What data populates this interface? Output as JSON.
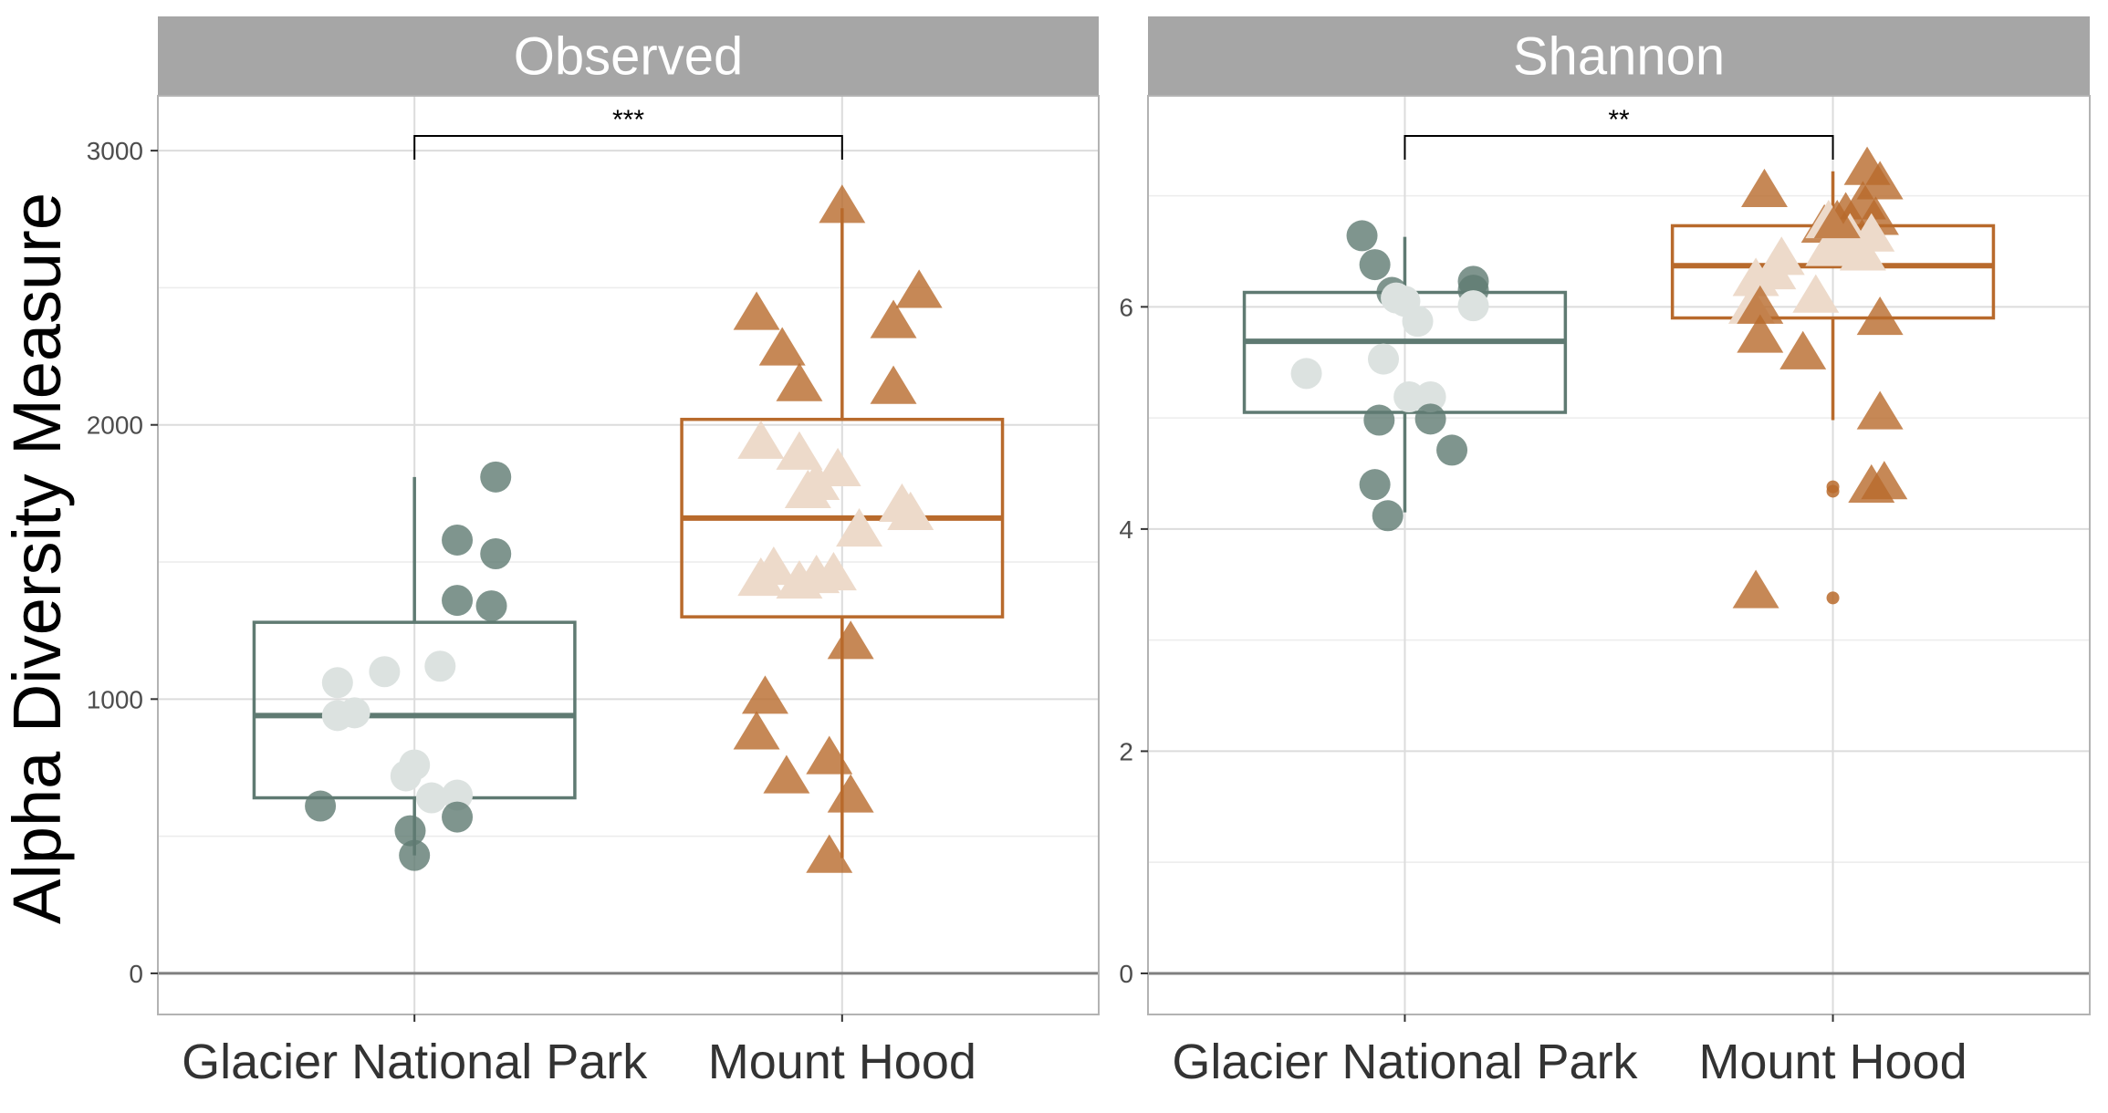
{
  "figure": {
    "ylabel": "Alpha Diversity Measure",
    "colors": {
      "glacier": "#5f7a72",
      "hood": "#b86a2c",
      "strip": "#a6a6a6",
      "grid": "#dcdcdc",
      "zero_line": "#7f7f7f"
    }
  },
  "chart_data": [
    {
      "type": "box",
      "panel": "Observed",
      "categories": [
        "Glacier National Park",
        "Mount Hood"
      ],
      "ylim": [
        -150,
        3200
      ],
      "yticks": [
        "0",
        "1000",
        "2000",
        "3000"
      ],
      "grid": true,
      "significance": "***",
      "boxes": [
        {
          "category": "Glacier National Park",
          "q1": 640,
          "median": 940,
          "q3": 1280,
          "whisker_low": 430,
          "whisker_high": 1810
        },
        {
          "category": "Mount Hood",
          "q1": 1300,
          "median": 1660,
          "q3": 2020,
          "whisker_low": 420,
          "whisker_high": 2790
        }
      ],
      "series": [
        {
          "name": "Glacier National Park",
          "marker": "circle",
          "points": [
            [
              1.19,
              1810,
              1
            ],
            [
              1.1,
              1580,
              1
            ],
            [
              1.19,
              1530,
              1
            ],
            [
              1.1,
              1360,
              1
            ],
            [
              1.18,
              1340,
              1
            ],
            [
              0.82,
              1060,
              0
            ],
            [
              0.93,
              1100,
              0
            ],
            [
              1.06,
              1120,
              0
            ],
            [
              0.82,
              940,
              0
            ],
            [
              0.86,
              950,
              0
            ],
            [
              1.0,
              760,
              0
            ],
            [
              0.98,
              720,
              0
            ],
            [
              1.1,
              650,
              0
            ],
            [
              1.04,
              640,
              0
            ],
            [
              0.78,
              610,
              1
            ],
            [
              1.1,
              570,
              1
            ],
            [
              0.99,
              520,
              1
            ],
            [
              1.0,
              430,
              1
            ]
          ]
        },
        {
          "name": "Mount Hood",
          "marker": "triangle",
          "points": [
            [
              2.0,
              2790,
              1
            ],
            [
              2.18,
              2480,
              1
            ],
            [
              1.8,
              2400,
              1
            ],
            [
              2.12,
              2370,
              1
            ],
            [
              1.86,
              2270,
              1
            ],
            [
              1.9,
              2140,
              1
            ],
            [
              2.12,
              2130,
              1
            ],
            [
              1.81,
              1930,
              0
            ],
            [
              1.9,
              1890,
              0
            ],
            [
              1.99,
              1830,
              0
            ],
            [
              1.94,
              1780,
              0
            ],
            [
              1.92,
              1750,
              0
            ],
            [
              2.14,
              1700,
              0
            ],
            [
              2.16,
              1670,
              0
            ],
            [
              2.04,
              1610,
              0
            ],
            [
              1.84,
              1470,
              0
            ],
            [
              1.81,
              1430,
              0
            ],
            [
              1.9,
              1420,
              0
            ],
            [
              1.94,
              1440,
              0
            ],
            [
              1.98,
              1450,
              0
            ],
            [
              2.02,
              1200,
              1
            ],
            [
              1.82,
              1000,
              1
            ],
            [
              1.8,
              870,
              1
            ],
            [
              1.97,
              780,
              1
            ],
            [
              1.87,
              710,
              1
            ],
            [
              2.02,
              640,
              1
            ],
            [
              1.97,
              420,
              1
            ]
          ]
        }
      ]
    },
    {
      "type": "box",
      "panel": "Shannon",
      "categories": [
        "Glacier National Park",
        "Mount Hood"
      ],
      "ylim": [
        -0.37,
        7.9
      ],
      "yticks": [
        "0",
        "2",
        "4",
        "6"
      ],
      "grid": true,
      "significance": "**",
      "boxes": [
        {
          "category": "Glacier National Park",
          "q1": 5.05,
          "median": 5.69,
          "q3": 6.13,
          "whisker_low": 4.15,
          "whisker_high": 6.63
        },
        {
          "category": "Mount Hood",
          "q1": 5.9,
          "median": 6.37,
          "q3": 6.73,
          "whisker_low": 4.98,
          "whisker_high": 7.22
        },
        {
          "outliers": [
            4.38,
            4.34,
            3.38
          ]
        }
      ],
      "series": [
        {
          "name": "Glacier National Park",
          "marker": "circle",
          "points": [
            [
              0.9,
              6.64,
              1
            ],
            [
              0.93,
              6.38,
              1
            ],
            [
              0.97,
              6.13,
              1
            ],
            [
              1.16,
              6.23,
              1
            ],
            [
              1.16,
              6.15,
              1
            ],
            [
              0.98,
              6.08,
              0
            ],
            [
              1.0,
              6.05,
              0
            ],
            [
              1.16,
              6.01,
              0
            ],
            [
              1.03,
              5.87,
              0
            ],
            [
              0.95,
              5.53,
              0
            ],
            [
              0.77,
              5.4,
              0
            ],
            [
              1.01,
              5.19,
              0
            ],
            [
              1.06,
              5.19,
              0
            ],
            [
              0.94,
              4.98,
              1
            ],
            [
              1.06,
              4.99,
              1
            ],
            [
              1.11,
              4.71,
              1
            ],
            [
              0.93,
              4.4,
              1
            ],
            [
              0.96,
              4.12,
              1
            ]
          ]
        },
        {
          "name": "Mount Hood",
          "marker": "triangle",
          "points": [
            [
              1.84,
              7.03,
              1
            ],
            [
              2.08,
              7.23,
              1
            ],
            [
              2.11,
              7.1,
              1
            ],
            [
              2.07,
              6.92,
              1
            ],
            [
              2.03,
              6.82,
              1
            ],
            [
              1.98,
              6.71,
              1
            ],
            [
              2.1,
              6.78,
              1
            ],
            [
              1.99,
              6.75,
              0
            ],
            [
              2.04,
              6.63,
              0
            ],
            [
              2.09,
              6.63,
              0
            ],
            [
              2.03,
              6.55,
              0
            ],
            [
              1.99,
              6.5,
              0
            ],
            [
              2.07,
              6.46,
              0
            ],
            [
              1.88,
              6.42,
              0
            ],
            [
              1.86,
              6.29,
              0
            ],
            [
              1.82,
              6.23,
              0
            ],
            [
              1.81,
              5.98,
              0
            ],
            [
              1.96,
              6.08,
              0
            ],
            [
              2.01,
              6.75,
              1
            ],
            [
              1.83,
              5.98,
              1
            ],
            [
              2.11,
              5.88,
              1
            ],
            [
              1.83,
              5.72,
              1
            ],
            [
              1.93,
              5.57,
              1
            ],
            [
              2.11,
              5.03,
              1
            ],
            [
              2.12,
              4.4,
              1
            ],
            [
              2.09,
              4.37,
              1
            ],
            [
              1.82,
              3.42,
              1
            ]
          ]
        }
      ]
    }
  ]
}
